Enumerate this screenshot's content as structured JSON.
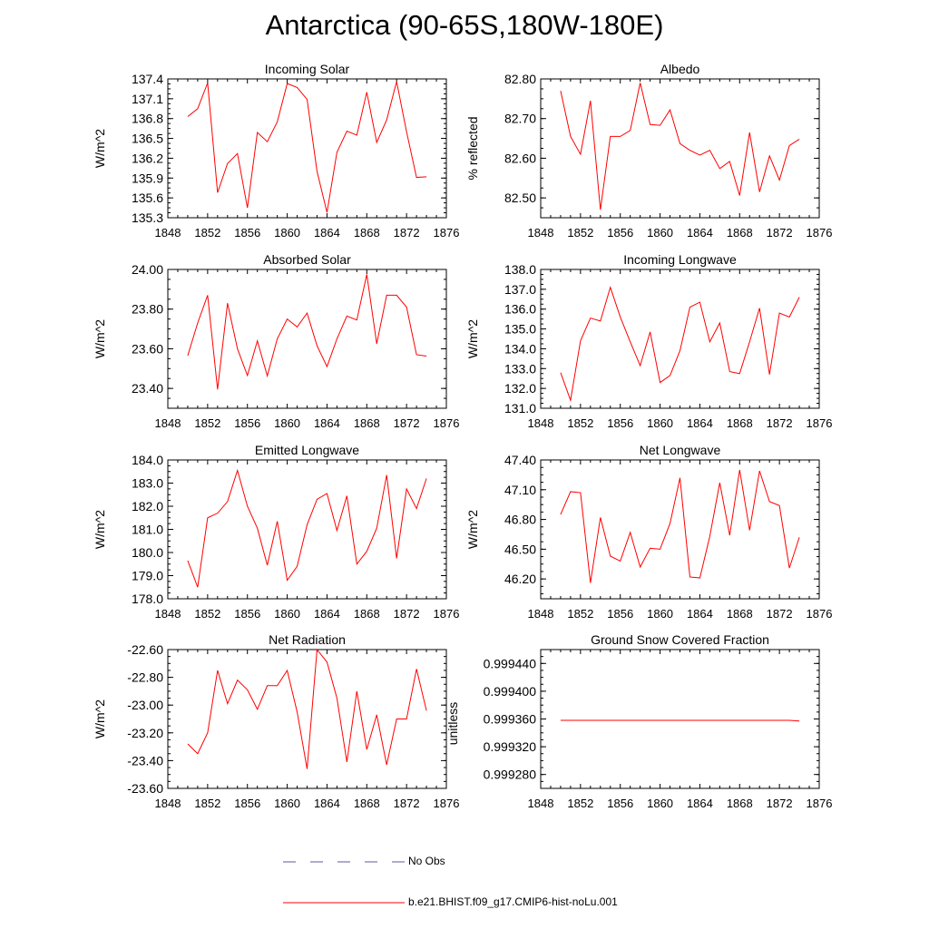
{
  "title": "Antarctica (90-65S,180W-180E)",
  "legend": {
    "obs_label": "No Obs",
    "obs_color": "#5a5aa0",
    "model_label": "b.e21.BHIST.f09_g17.CMIP6-hist-noLu.001",
    "model_color": "#ff0000"
  },
  "chart_data": [
    {
      "type": "line",
      "title": "Incoming Solar",
      "ylabel": "W/m^2",
      "xlim": [
        1848,
        1876
      ],
      "xticks": [
        "1848",
        "1852",
        "1856",
        "1860",
        "1864",
        "1868",
        "1872",
        "1876"
      ],
      "ylim": [
        135.3,
        137.4
      ],
      "yticks": [
        "135.3",
        "135.6",
        "135.9",
        "136.2",
        "136.5",
        "136.8",
        "137.1",
        "137.4"
      ],
      "x": [
        1850,
        1851,
        1852,
        1853,
        1854,
        1855,
        1856,
        1857,
        1858,
        1859,
        1860,
        1861,
        1862,
        1863,
        1864,
        1865,
        1866,
        1867,
        1868,
        1869,
        1870,
        1871,
        1872,
        1873,
        1874
      ],
      "series": [
        {
          "values": [
            136.83,
            136.95,
            137.34,
            135.68,
            136.12,
            136.27,
            135.45,
            136.59,
            136.45,
            136.75,
            137.33,
            137.27,
            137.09,
            136.0,
            135.38,
            136.29,
            136.61,
            136.55,
            137.2,
            136.44,
            136.78,
            137.36,
            136.6,
            135.91,
            135.92
          ]
        }
      ]
    },
    {
      "type": "line",
      "title": "Albedo",
      "ylabel": "% reflected",
      "xlim": [
        1848,
        1876
      ],
      "xticks": [
        "1848",
        "1852",
        "1856",
        "1860",
        "1864",
        "1868",
        "1872",
        "1876"
      ],
      "ylim": [
        82.45,
        82.8
      ],
      "yticks": [
        "82.50",
        "82.60",
        "82.70",
        "82.80"
      ],
      "x": [
        1850,
        1851,
        1852,
        1853,
        1854,
        1855,
        1856,
        1857,
        1858,
        1859,
        1860,
        1861,
        1862,
        1863,
        1864,
        1865,
        1866,
        1867,
        1868,
        1869,
        1870,
        1871,
        1872,
        1873,
        1874
      ],
      "series": [
        {
          "values": [
            82.77,
            82.655,
            82.61,
            82.745,
            82.47,
            82.655,
            82.655,
            82.67,
            82.79,
            82.685,
            82.683,
            82.722,
            82.637,
            82.62,
            82.608,
            82.62,
            82.574,
            82.592,
            82.506,
            82.665,
            82.515,
            82.606,
            82.545,
            82.632,
            82.648
          ]
        }
      ]
    },
    {
      "type": "line",
      "title": "Absorbed Solar",
      "ylabel": "W/m^2",
      "xlim": [
        1848,
        1876
      ],
      "xticks": [
        "1848",
        "1852",
        "1856",
        "1860",
        "1864",
        "1868",
        "1872",
        "1876"
      ],
      "ylim": [
        23.3,
        24.0
      ],
      "yticks": [
        "23.40",
        "23.60",
        "23.80",
        "24.00"
      ],
      "x": [
        1850,
        1851,
        1852,
        1853,
        1854,
        1855,
        1856,
        1857,
        1858,
        1859,
        1860,
        1861,
        1862,
        1863,
        1864,
        1865,
        1866,
        1867,
        1868,
        1869,
        1870,
        1871,
        1872,
        1873,
        1874
      ],
      "series": [
        {
          "values": [
            23.565,
            23.73,
            23.87,
            23.395,
            23.83,
            23.6,
            23.465,
            23.64,
            23.463,
            23.65,
            23.75,
            23.71,
            23.78,
            23.615,
            23.51,
            23.65,
            23.765,
            23.745,
            23.975,
            23.625,
            23.87,
            23.87,
            23.81,
            23.57,
            23.563
          ]
        }
      ]
    },
    {
      "type": "line",
      "title": "Incoming Longwave",
      "ylabel": "W/m^2",
      "xlim": [
        1848,
        1876
      ],
      "xticks": [
        "1848",
        "1852",
        "1856",
        "1860",
        "1864",
        "1868",
        "1872",
        "1876"
      ],
      "ylim": [
        131.0,
        138.0
      ],
      "yticks": [
        "131.0",
        "132.0",
        "133.0",
        "134.0",
        "135.0",
        "136.0",
        "137.0",
        "138.0"
      ],
      "x": [
        1850,
        1851,
        1852,
        1853,
        1854,
        1855,
        1856,
        1857,
        1858,
        1859,
        1860,
        1861,
        1862,
        1863,
        1864,
        1865,
        1866,
        1867,
        1868,
        1869,
        1870,
        1871,
        1872,
        1873,
        1874
      ],
      "series": [
        {
          "values": [
            132.8,
            131.4,
            134.4,
            135.55,
            135.4,
            137.1,
            135.6,
            134.35,
            133.15,
            134.85,
            132.3,
            132.65,
            133.9,
            136.1,
            136.35,
            134.35,
            135.3,
            132.85,
            132.75,
            134.35,
            136.05,
            132.7,
            135.8,
            135.6,
            136.6
          ]
        }
      ]
    },
    {
      "type": "line",
      "title": "Emitted Longwave",
      "ylabel": "W/m^2",
      "xlim": [
        1848,
        1876
      ],
      "xticks": [
        "1848",
        "1852",
        "1856",
        "1860",
        "1864",
        "1868",
        "1872",
        "1876"
      ],
      "ylim": [
        178.0,
        184.0
      ],
      "yticks": [
        "178.0",
        "179.0",
        "180.0",
        "181.0",
        "182.0",
        "183.0",
        "184.0"
      ],
      "x": [
        1850,
        1851,
        1852,
        1853,
        1854,
        1855,
        1856,
        1857,
        1858,
        1859,
        1860,
        1861,
        1862,
        1863,
        1864,
        1865,
        1866,
        1867,
        1868,
        1869,
        1870,
        1871,
        1872,
        1873,
        1874
      ],
      "series": [
        {
          "values": [
            179.65,
            178.5,
            181.5,
            181.7,
            182.2,
            183.55,
            182.0,
            181.05,
            179.45,
            181.35,
            178.8,
            179.4,
            181.2,
            182.3,
            182.55,
            180.95,
            182.45,
            179.5,
            180.05,
            181.05,
            183.35,
            179.75,
            182.75,
            181.9,
            183.2
          ]
        }
      ]
    },
    {
      "type": "line",
      "title": "Net Longwave",
      "ylabel": "W/m^2",
      "xlim": [
        1848,
        1876
      ],
      "xticks": [
        "1848",
        "1852",
        "1856",
        "1860",
        "1864",
        "1868",
        "1872",
        "1876"
      ],
      "ylim": [
        46.0,
        47.4
      ],
      "yticks": [
        "46.20",
        "46.50",
        "46.80",
        "47.10",
        "47.40"
      ],
      "x": [
        1850,
        1851,
        1852,
        1853,
        1854,
        1855,
        1856,
        1857,
        1858,
        1859,
        1860,
        1861,
        1862,
        1863,
        1864,
        1865,
        1866,
        1867,
        1868,
        1869,
        1870,
        1871,
        1872,
        1873,
        1874
      ],
      "series": [
        {
          "values": [
            46.85,
            47.08,
            47.07,
            46.16,
            46.82,
            46.43,
            46.38,
            46.67,
            46.32,
            46.51,
            46.5,
            46.76,
            47.22,
            46.22,
            46.21,
            46.63,
            47.17,
            46.64,
            47.3,
            46.69,
            47.29,
            46.98,
            46.94,
            46.31,
            46.62
          ]
        }
      ]
    },
    {
      "type": "line",
      "title": "Net Radiation",
      "ylabel": "W/m^2",
      "xlim": [
        1848,
        1876
      ],
      "xticks": [
        "1848",
        "1852",
        "1856",
        "1860",
        "1864",
        "1868",
        "1872",
        "1876"
      ],
      "ylim": [
        -23.6,
        -22.6
      ],
      "yticks": [
        "-23.60",
        "-23.40",
        "-23.20",
        "-23.00",
        "-22.80",
        "-22.60"
      ],
      "x": [
        1850,
        1851,
        1852,
        1853,
        1854,
        1855,
        1856,
        1857,
        1858,
        1859,
        1860,
        1861,
        1862,
        1863,
        1864,
        1865,
        1866,
        1867,
        1868,
        1869,
        1870,
        1871,
        1872,
        1873,
        1874
      ],
      "series": [
        {
          "values": [
            -23.28,
            -23.35,
            -23.2,
            -22.75,
            -22.99,
            -22.82,
            -22.89,
            -23.03,
            -22.86,
            -22.86,
            -22.75,
            -23.05,
            -23.46,
            -22.6,
            -22.69,
            -22.95,
            -23.41,
            -22.9,
            -23.32,
            -23.07,
            -23.43,
            -23.1,
            -23.1,
            -22.74,
            -23.04
          ]
        }
      ]
    },
    {
      "type": "line",
      "title": "Ground Snow Covered Fraction",
      "ylabel": "unitless",
      "xlim": [
        1848,
        1876
      ],
      "xticks": [
        "1848",
        "1852",
        "1856",
        "1860",
        "1864",
        "1868",
        "1872",
        "1876"
      ],
      "ylim": [
        0.99926,
        0.99946
      ],
      "yticks": [
        "0.999280",
        "0.999320",
        "0.999360",
        "0.999400",
        "0.999440"
      ],
      "x": [
        1850,
        1851,
        1852,
        1853,
        1854,
        1855,
        1856,
        1857,
        1858,
        1859,
        1860,
        1861,
        1862,
        1863,
        1864,
        1865,
        1866,
        1867,
        1868,
        1869,
        1870,
        1871,
        1872,
        1873,
        1874
      ],
      "series": [
        {
          "values": [
            0.999358,
            0.999358,
            0.999358,
            0.999358,
            0.999358,
            0.999358,
            0.999358,
            0.999358,
            0.999358,
            0.999358,
            0.999358,
            0.999358,
            0.999358,
            0.999358,
            0.999358,
            0.999358,
            0.999358,
            0.999358,
            0.999358,
            0.999358,
            0.999358,
            0.999358,
            0.999358,
            0.999358,
            0.999357
          ]
        }
      ]
    }
  ]
}
